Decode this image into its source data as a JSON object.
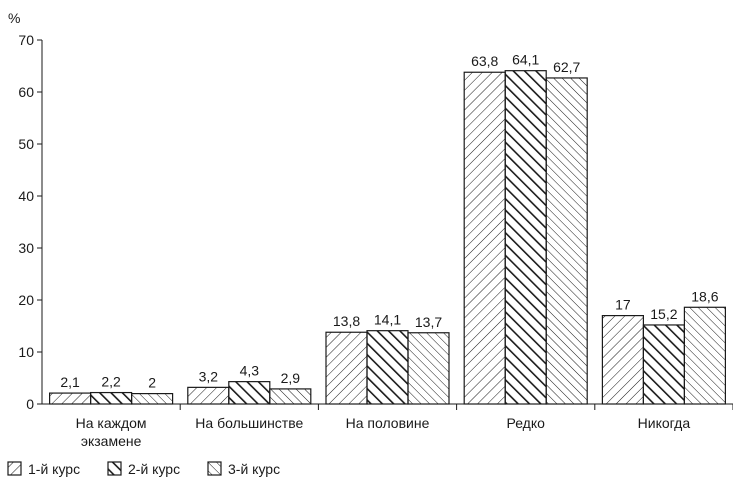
{
  "chart_data": {
    "type": "bar",
    "title": "",
    "xlabel": "",
    "ylabel": "%",
    "ylim": [
      0,
      70
    ],
    "yticks": [
      0,
      10,
      20,
      30,
      40,
      50,
      60,
      70
    ],
    "grid": false,
    "legend_position": "bottom-left",
    "categories": [
      [
        "На каждом",
        "экзамене"
      ],
      [
        "На большинстве"
      ],
      [
        "На половине"
      ],
      [
        "Редко"
      ],
      [
        "Никогда"
      ]
    ],
    "series": [
      {
        "name": "1-й курс",
        "pattern": "light-forward-hatch",
        "values": [
          2.1,
          3.2,
          13.8,
          63.8,
          17
        ],
        "labels": [
          "2,1",
          "3,2",
          "13,8",
          "63,8",
          "17"
        ]
      },
      {
        "name": "2-й курс",
        "pattern": "bold-back-hatch",
        "values": [
          2.2,
          4.3,
          14.1,
          64.1,
          15.2
        ],
        "labels": [
          "2,2",
          "4,3",
          "14,1",
          "64,1",
          "15,2"
        ]
      },
      {
        "name": "3-й курс",
        "pattern": "light-back-hatch",
        "values": [
          2,
          2.9,
          13.7,
          62.7,
          18.6
        ],
        "labels": [
          "2",
          "2,9",
          "13,7",
          "62,7",
          "18,6"
        ]
      }
    ],
    "colors": {
      "stroke": "#1a1a1a",
      "background": "#ffffff"
    }
  }
}
